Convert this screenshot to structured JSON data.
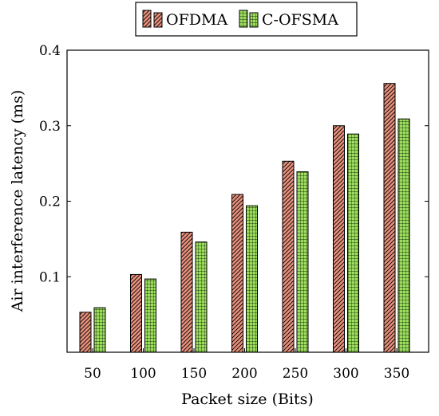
{
  "chart_data": {
    "type": "bar",
    "title": "",
    "xlabel": "Packet size (Bits)",
    "ylabel": "Air interference latency (ms)",
    "categories": [
      "50",
      "100",
      "150",
      "200",
      "250",
      "300",
      "350"
    ],
    "series": [
      {
        "name": "OFDMA",
        "values": [
          0.053,
          0.103,
          0.159,
          0.209,
          0.253,
          0.3,
          0.356
        ],
        "color": "#e8907c",
        "pattern": "diagonal-lines"
      },
      {
        "name": "C-OFSMA",
        "values": [
          0.059,
          0.097,
          0.146,
          0.194,
          0.239,
          0.289,
          0.309
        ],
        "color": "#9be05a",
        "pattern": "grid"
      }
    ],
    "ylim": [
      0,
      0.4
    ],
    "yticks": [
      "0.1",
      "0.2",
      "0.3",
      "0.4"
    ],
    "grid": false,
    "legend_position": "top-center"
  }
}
